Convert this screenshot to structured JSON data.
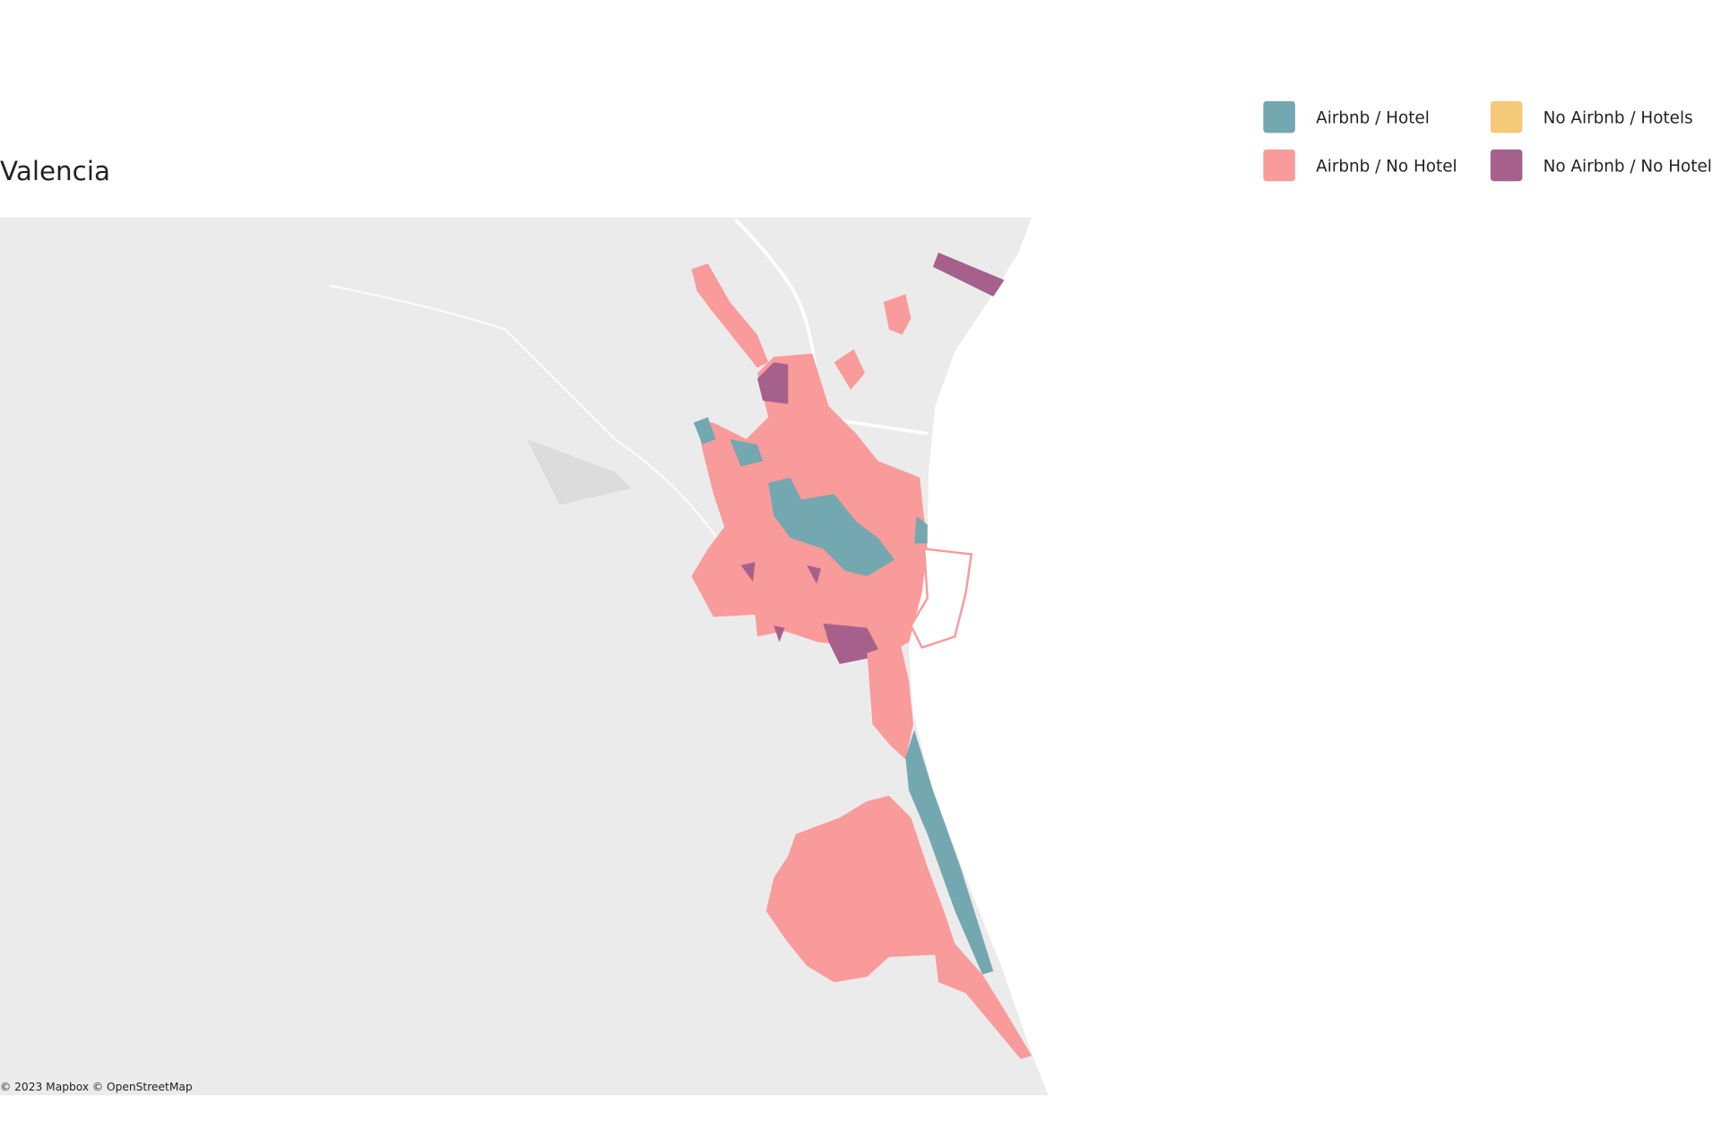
{
  "title": "Valencia",
  "legend": [
    {
      "label": "Airbnb / Hotel",
      "color": "#74a8b0"
    },
    {
      "label": "Airbnb / No Hotel",
      "color": "#f99a9b"
    },
    {
      "label": "No Airbnb / Hotels",
      "color": "#f4c978"
    },
    {
      "label": "No Airbnb / No Hotel",
      "color": "#a5618c"
    }
  ],
  "attribution": [
    "© 2023 Mapbox",
    "© OpenStreetMap"
  ]
}
